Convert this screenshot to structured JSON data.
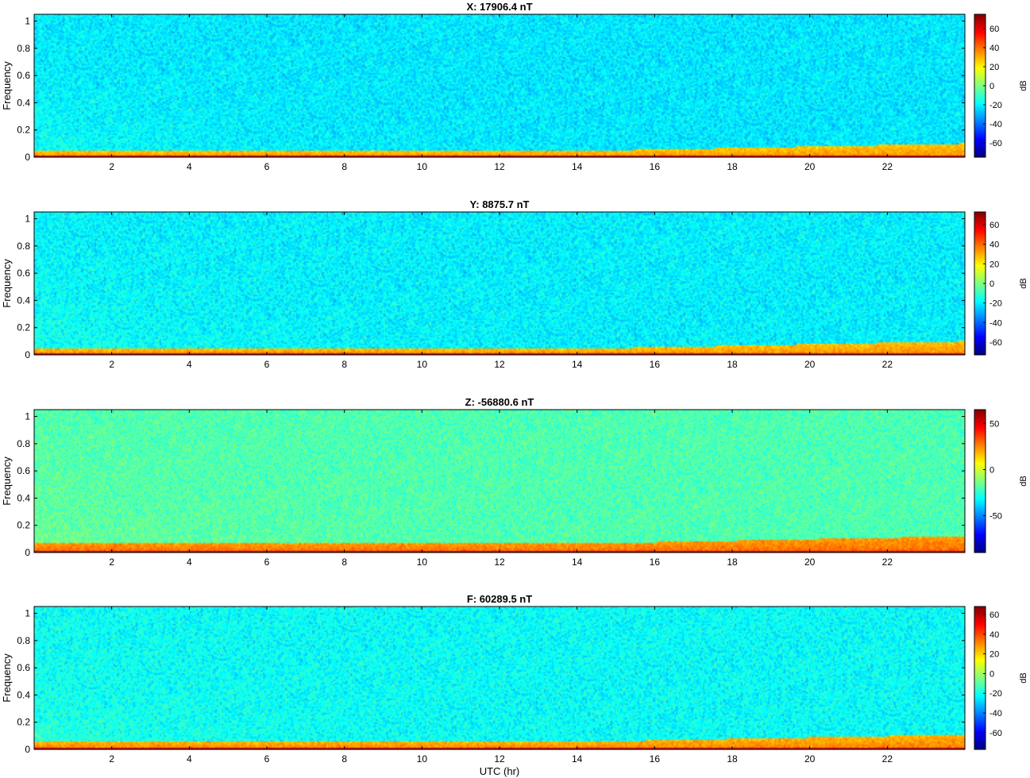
{
  "chart_data": [
    {
      "type": "heatmap",
      "title": "X: 17906.4 nT",
      "ylabel": "Frequency",
      "xlabel": "",
      "xlim": [
        0,
        24
      ],
      "ylim": [
        0,
        1.05
      ],
      "x_ticks": [
        "2",
        "4",
        "6",
        "8",
        "10",
        "12",
        "14",
        "16",
        "18",
        "20",
        "22"
      ],
      "y_ticks": [
        "0",
        "0.2",
        "0.4",
        "0.6",
        "0.8",
        "1"
      ],
      "colorbar_label": "dB",
      "colorbar_ticks": [
        "60",
        "40",
        "20",
        "0",
        "-20",
        "-40",
        "-60"
      ],
      "colorbar_range": [
        -75,
        75
      ],
      "colormap": "jet",
      "background_level_db": -22,
      "low_freq_band": {
        "freq_max": 0.05,
        "level_db": 35,
        "late_day_freq_max": 0.1
      }
    },
    {
      "type": "heatmap",
      "title": "Y: 8875.7 nT",
      "ylabel": "Frequency",
      "xlabel": "",
      "xlim": [
        0,
        24
      ],
      "ylim": [
        0,
        1.05
      ],
      "x_ticks": [
        "2",
        "4",
        "6",
        "8",
        "10",
        "12",
        "14",
        "16",
        "18",
        "20",
        "22"
      ],
      "y_ticks": [
        "0",
        "0.2",
        "0.4",
        "0.6",
        "0.8",
        "1"
      ],
      "colorbar_label": "dB",
      "colorbar_ticks": [
        "60",
        "40",
        "20",
        "0",
        "-20",
        "-40",
        "-60"
      ],
      "colorbar_range": [
        -73,
        73
      ],
      "colormap": "jet",
      "background_level_db": -20,
      "low_freq_band": {
        "freq_max": 0.05,
        "level_db": 35,
        "late_day_freq_max": 0.1
      }
    },
    {
      "type": "heatmap",
      "title": "Z: -56880.6 nT",
      "ylabel": "Frequency",
      "xlabel": "",
      "xlim": [
        0,
        24
      ],
      "ylim": [
        0,
        1.05
      ],
      "x_ticks": [
        "2",
        "4",
        "6",
        "8",
        "10",
        "12",
        "14",
        "16",
        "18",
        "20",
        "22"
      ],
      "y_ticks": [
        "0",
        "0.2",
        "0.4",
        "0.6",
        "0.8",
        "1"
      ],
      "colorbar_label": "dB",
      "colorbar_ticks": [
        "50",
        "0",
        "-50"
      ],
      "colorbar_range": [
        -90,
        65
      ],
      "colormap": "jet",
      "background_level_db": -20,
      "low_freq_band": {
        "freq_max": 0.07,
        "level_db": 30,
        "late_day_freq_max": 0.12
      }
    },
    {
      "type": "heatmap",
      "title": "F: 60289.5 nT",
      "ylabel": "Frequency",
      "xlabel": "UTC (hr)",
      "xlim": [
        0,
        24
      ],
      "ylim": [
        0,
        1.05
      ],
      "x_ticks": [
        "2",
        "4",
        "6",
        "8",
        "10",
        "12",
        "14",
        "16",
        "18",
        "20",
        "22"
      ],
      "y_ticks": [
        "0",
        "0.2",
        "0.4",
        "0.6",
        "0.8",
        "1"
      ],
      "colorbar_label": "dB",
      "colorbar_ticks": [
        "60",
        "40",
        "20",
        "0",
        "-20",
        "-40",
        "-60"
      ],
      "colorbar_range": [
        -77,
        68
      ],
      "colormap": "jet",
      "background_level_db": -22,
      "low_freq_band": {
        "freq_max": 0.06,
        "level_db": 32,
        "late_day_freq_max": 0.11
      }
    }
  ]
}
